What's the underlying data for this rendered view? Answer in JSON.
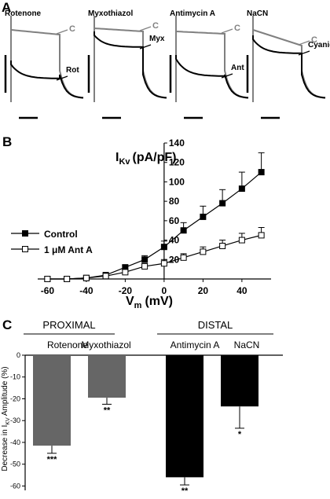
{
  "panels": {
    "a": {
      "label": "A",
      "traces": [
        {
          "title": "Rotenone",
          "control_label": "C",
          "drug_label": "Rot"
        },
        {
          "title": "Myxothiazol",
          "control_label": "C",
          "drug_label": "Myx"
        },
        {
          "title": "Antimycin A",
          "control_label": "C",
          "drug_label": "Ant"
        },
        {
          "title": "NaCN",
          "control_label": "C",
          "drug_label": "Cyanide"
        }
      ],
      "colors": {
        "control": "#808080",
        "drug": "#000000"
      }
    },
    "b": {
      "label": "B"
    },
    "c": {
      "label": "C",
      "group_proximal": "PROXIMAL",
      "group_distal": "DISTAL"
    }
  },
  "chart_data": [
    {
      "type": "line",
      "panel": "B",
      "xlabel_main": "V",
      "xlabel_sub": "m",
      "xlabel_unit": "(mV)",
      "ylabel_main": "I",
      "ylabel_sub": "Kv",
      "ylabel_unit": "(pA/pF)",
      "xlim": [
        -65,
        55
      ],
      "ylim": [
        0,
        140
      ],
      "x_ticks": [
        -60,
        -40,
        -20,
        0,
        20,
        40
      ],
      "y_ticks": [
        20,
        40,
        60,
        80,
        100,
        120,
        140
      ],
      "x": [
        -60,
        -50,
        -40,
        -30,
        -20,
        -10,
        0,
        10,
        20,
        30,
        40,
        50
      ],
      "series": [
        {
          "name": "Control",
          "marker": "filled-square",
          "values": [
            0,
            0,
            1,
            4,
            12,
            20,
            33,
            50,
            64,
            78,
            93,
            110
          ],
          "errors": [
            0,
            0,
            0.5,
            1,
            2,
            4,
            6,
            8,
            11,
            14,
            17,
            20
          ]
        },
        {
          "name": "1 μM Ant A",
          "marker": "open-square",
          "values": [
            0,
            0,
            1,
            3,
            7,
            13,
            16,
            22,
            28,
            34,
            40,
            45
          ],
          "errors": [
            0,
            0,
            0.5,
            1,
            2,
            3,
            4,
            4,
            5,
            6,
            7,
            8
          ]
        }
      ]
    },
    {
      "type": "bar",
      "panel": "C",
      "ylabel_pre": "Decrease in I",
      "ylabel_sub": "KV",
      "ylabel_post": " Amplitude (%)",
      "ylim": [
        -62,
        0
      ],
      "y_ticks": [
        0,
        -10,
        -20,
        -30,
        -40,
        -50,
        -60
      ],
      "categories": [
        "Rotenone",
        "Myxothiazol",
        "Antimycin A",
        "NaCN"
      ],
      "values": [
        -41.5,
        -19.5,
        -56,
        -23.5
      ],
      "errors": [
        3.5,
        3,
        3.5,
        10
      ],
      "significance": [
        "***",
        "**",
        "**",
        "*"
      ],
      "colors": [
        "#666666",
        "#666666",
        "#000000",
        "#000000"
      ]
    }
  ]
}
